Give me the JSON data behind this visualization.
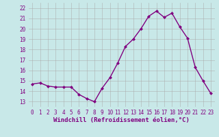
{
  "x": [
    0,
    1,
    2,
    3,
    4,
    5,
    6,
    7,
    8,
    9,
    10,
    11,
    12,
    13,
    14,
    15,
    16,
    17,
    18,
    19,
    20,
    21,
    22,
    23
  ],
  "y": [
    14.7,
    14.8,
    14.5,
    14.4,
    14.4,
    14.4,
    13.7,
    13.3,
    13.0,
    14.3,
    15.3,
    16.7,
    18.3,
    19.0,
    20.0,
    21.2,
    21.7,
    21.1,
    21.5,
    20.2,
    19.1,
    16.3,
    15.0,
    13.8
  ],
  "line_color": "#800080",
  "marker": "D",
  "marker_size": 2,
  "bg_color": "#c8e8e8",
  "grid_color": "#aaaaaa",
  "xlabel": "Windchill (Refroidissement éolien,°C)",
  "xlim": [
    -0.5,
    23.5
  ],
  "ylim": [
    12.5,
    22.5
  ],
  "yticks": [
    13,
    14,
    15,
    16,
    17,
    18,
    19,
    20,
    21,
    22
  ],
  "xticks": [
    0,
    1,
    2,
    3,
    4,
    5,
    6,
    7,
    8,
    9,
    10,
    11,
    12,
    13,
    14,
    15,
    16,
    17,
    18,
    19,
    20,
    21,
    22,
    23
  ],
  "tick_label_color": "#800080",
  "tick_label_size": 5.5,
  "xlabel_size": 6.5,
  "xlabel_color": "#800080",
  "line_width": 1.0
}
